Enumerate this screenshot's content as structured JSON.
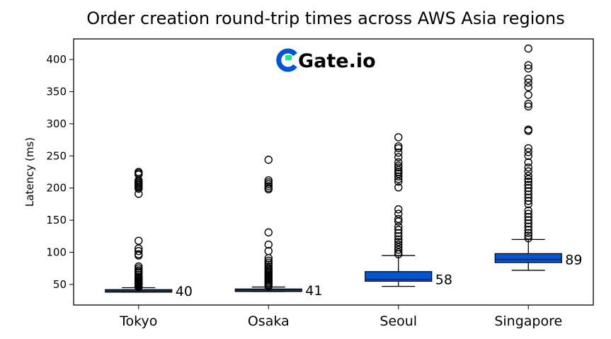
{
  "chart_data": {
    "type": "box",
    "title": "Order creation round-trip times across AWS Asia regions",
    "xlabel": "",
    "ylabel": "Latency (ms)",
    "ylim": [
      18,
      432
    ],
    "yticks": [
      50,
      100,
      150,
      200,
      250,
      300,
      350,
      400
    ],
    "grid": false,
    "logo": "Gate.io",
    "colors": {
      "tokyo": "#1a3a2e",
      "osaka": "#1a3a2e",
      "seoul": "#0055d4",
      "singapore": "#0055d4"
    },
    "categories": [
      "Tokyo",
      "Osaka",
      "Seoul",
      "Singapore"
    ],
    "boxes": [
      {
        "category": "Tokyo",
        "median": 40,
        "median_label": "40",
        "q1": 38,
        "q3": 42,
        "whisker_low": 38,
        "whisker_high": 45,
        "color": "#1a3a2e",
        "outliers": [
          225,
          223,
          221,
          212,
          210,
          208,
          206,
          205,
          203,
          201,
          199,
          191,
          118,
          106,
          102,
          97,
          95,
          78,
          75,
          72,
          70,
          68,
          65,
          62,
          60,
          58,
          56,
          55,
          54,
          53,
          52,
          51,
          50,
          49,
          48,
          47,
          46
        ]
      },
      {
        "category": "Osaka",
        "median": 41,
        "median_label": "41",
        "q1": 39,
        "q3": 43,
        "whisker_low": 39,
        "whisker_high": 46,
        "color": "#1a3a2e",
        "outliers": [
          244,
          212,
          209,
          206,
          203,
          200,
          198,
          131,
          112,
          102,
          91,
          87,
          84,
          81,
          78,
          75,
          73,
          71,
          69,
          67,
          65,
          63,
          61,
          59,
          57,
          55,
          53,
          51,
          49,
          47
        ]
      },
      {
        "category": "Seoul",
        "median": 58,
        "median_label": "58",
        "q1": 55,
        "q3": 70,
        "whisker_low": 47,
        "whisker_high": 95,
        "color": "#0055d4",
        "outliers": [
          279,
          265,
          262,
          255,
          248,
          240,
          235,
          232,
          228,
          225,
          222,
          218,
          214,
          210,
          201,
          167,
          160,
          152,
          148,
          140,
          135,
          130,
          125,
          120,
          116,
          112,
          108,
          104,
          100,
          97
        ]
      },
      {
        "category": "Singapore",
        "median": 89,
        "median_label": "89",
        "q1": 84,
        "q3": 98,
        "whisker_low": 72,
        "whisker_high": 120,
        "color": "#0055d4",
        "outliers": [
          417,
          391,
          386,
          370,
          364,
          357,
          345,
          331,
          327,
          291,
          289,
          262,
          256,
          250,
          240,
          232,
          226,
          219,
          214,
          210,
          205,
          200,
          195,
          190,
          185,
          180,
          175,
          165,
          160,
          155,
          150,
          145,
          140,
          135,
          130,
          126,
          122
        ]
      }
    ]
  }
}
